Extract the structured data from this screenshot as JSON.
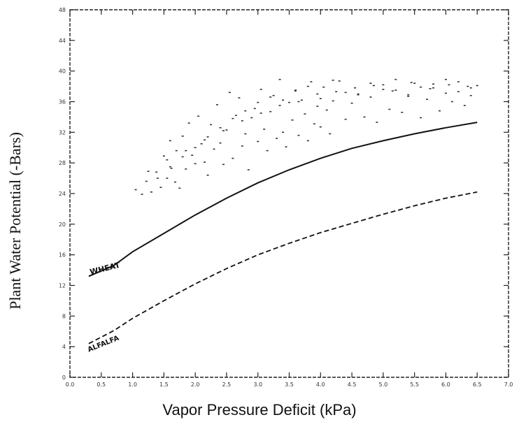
{
  "chart_data": {
    "type": "line",
    "title": "",
    "xlabel": "Vapor Pressure Deficit (kPa)",
    "ylabel": "Plant Water Potential (-Bars)",
    "xlim": [
      0.0,
      7.0
    ],
    "ylim": [
      0,
      48
    ],
    "xticks": [
      "0.0",
      "0.5",
      "1.0",
      "1.5",
      "2.0",
      "2.5",
      "3.0",
      "3.5",
      "4.0",
      "4.5",
      "5.0",
      "5.5",
      "6.0",
      "6.5",
      "7.0"
    ],
    "yticks": [
      "0",
      "4",
      "8",
      "12",
      "16",
      "20",
      "24",
      "28",
      "32",
      "36",
      "40",
      "44",
      "48"
    ],
    "grid": false,
    "series": [
      {
        "name": "WHEAT",
        "style": "solid/dashed",
        "x": [
          0.3,
          0.7,
          1.0,
          1.5,
          2.0,
          2.5,
          3.0,
          3.5,
          4.0,
          4.5,
          5.0,
          5.5,
          6.0,
          6.5
        ],
        "y": [
          13.2,
          14.6,
          16.4,
          18.8,
          21.2,
          23.4,
          25.4,
          27.1,
          28.6,
          29.9,
          30.9,
          31.8,
          32.6,
          33.3
        ]
      },
      {
        "name": "ALFALFA",
        "style": "dashed",
        "x": [
          0.3,
          0.7,
          1.0,
          1.5,
          2.0,
          2.5,
          3.0,
          3.5,
          4.0,
          4.5,
          5.0,
          5.5,
          6.0,
          6.5
        ],
        "y": [
          4.4,
          6.1,
          7.7,
          10.0,
          12.2,
          14.2,
          16.0,
          17.5,
          18.9,
          20.1,
          21.3,
          22.4,
          23.4,
          24.2
        ]
      }
    ],
    "scatter": {
      "x": [
        1.05,
        1.15,
        1.22,
        1.3,
        1.38,
        1.45,
        1.5,
        1.55,
        1.6,
        1.62,
        1.68,
        1.7,
        1.75,
        1.8,
        1.85,
        1.9,
        1.95,
        2.0,
        2.05,
        2.1,
        2.15,
        2.2,
        2.25,
        2.3,
        2.35,
        2.4,
        2.45,
        2.5,
        2.55,
        2.6,
        2.65,
        2.7,
        2.75,
        2.8,
        2.85,
        2.9,
        2.95,
        3.0,
        3.05,
        3.1,
        3.15,
        3.2,
        3.25,
        3.3,
        3.35,
        3.4,
        3.45,
        3.5,
        3.55,
        3.6,
        3.65,
        3.7,
        3.75,
        3.8,
        3.85,
        3.9,
        3.95,
        4.0,
        4.05,
        4.1,
        4.15,
        4.2,
        4.3,
        4.4,
        4.5,
        4.6,
        4.7,
        4.8,
        4.9,
        5.0,
        5.1,
        5.2,
        5.3,
        5.4,
        5.5,
        5.6,
        5.7,
        5.8,
        5.9,
        6.0,
        6.1,
        6.2,
        6.3,
        6.4,
        6.5,
        1.4,
        1.6,
        1.8,
        2.0,
        2.2,
        2.4,
        2.6,
        2.8,
        3.0,
        3.2,
        3.4,
        3.6,
        3.8,
        4.0,
        4.2,
        4.4,
        4.6,
        4.8,
        5.0,
        5.2,
        5.4,
        5.6,
        5.8,
        6.0,
        6.2,
        6.4,
        1.25,
        1.55,
        1.85,
        2.15,
        2.45,
        2.75,
        3.05,
        3.35,
        3.65,
        3.95,
        4.25,
        4.55,
        4.85,
        5.15,
        5.45,
        5.75,
        6.05,
        6.35
      ],
      "y": [
        24.5,
        23.9,
        25.6,
        24.2,
        26.8,
        24.8,
        28.9,
        26.0,
        30.9,
        27.3,
        25.5,
        29.6,
        24.7,
        31.5,
        27.2,
        33.2,
        29.0,
        27.9,
        34.1,
        30.5,
        28.1,
        26.4,
        33.0,
        29.8,
        35.6,
        30.6,
        27.8,
        32.3,
        37.2,
        28.6,
        34.2,
        36.5,
        30.2,
        31.8,
        27.1,
        33.9,
        35.1,
        30.8,
        37.6,
        32.4,
        29.6,
        34.7,
        36.8,
        31.2,
        38.9,
        32.0,
        30.1,
        35.9,
        33.6,
        37.4,
        31.6,
        36.2,
        34.4,
        30.9,
        38.6,
        33.1,
        35.4,
        32.7,
        37.9,
        34.9,
        31.8,
        36.1,
        38.7,
        33.7,
        35.8,
        37.0,
        34.0,
        36.6,
        33.3,
        38.2,
        35.0,
        37.5,
        34.6,
        36.9,
        38.4,
        33.9,
        36.3,
        37.8,
        34.8,
        38.9,
        36.0,
        37.3,
        35.5,
        36.8,
        38.1,
        26.0,
        27.5,
        28.8,
        30.0,
        31.4,
        32.6,
        33.8,
        34.8,
        35.9,
        36.6,
        36.2,
        37.5,
        38.0,
        36.4,
        38.8,
        37.2,
        36.9,
        38.4,
        37.6,
        38.9,
        36.7,
        37.9,
        38.3,
        37.1,
        38.6,
        37.8,
        26.9,
        28.4,
        29.6,
        31.0,
        32.2,
        33.5,
        34.5,
        35.5,
        36.0,
        37.0,
        37.3,
        37.8,
        38.1,
        37.4,
        38.5,
        37.7,
        38.2,
        38.0
      ]
    },
    "annotations": [
      "WHEAT",
      "ALFALFA"
    ],
    "legend": "none"
  }
}
